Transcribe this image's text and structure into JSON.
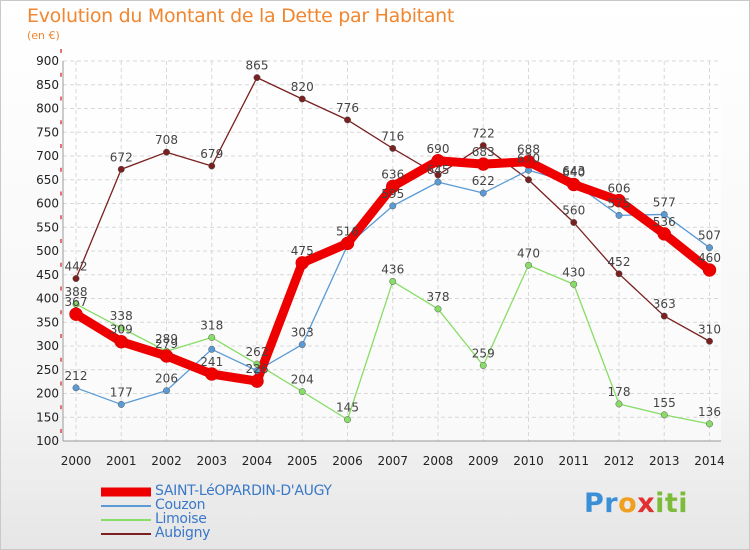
{
  "header": {
    "title": "Evolution du Montant de la Dette par Habitant",
    "unit": "(en €)"
  },
  "brand": {
    "letters": [
      "P",
      "r",
      "o",
      "x",
      "i",
      "t",
      "i"
    ],
    "colors": [
      "#3b8fd6",
      "#3b8fd6",
      "#f0a020",
      "#e03030",
      "#7dbb3a",
      "#7dbb3a",
      "#7dbb3a"
    ]
  },
  "chart_data": {
    "type": "line",
    "title": "Evolution du Montant de la Dette par Habitant",
    "xlabel": "",
    "ylabel": "",
    "x": [
      "2000",
      "2001",
      "2002",
      "2003",
      "2004",
      "2005",
      "2006",
      "2007",
      "2008",
      "2009",
      "2010",
      "2011",
      "2012",
      "2013",
      "2014"
    ],
    "ylim": [
      100,
      900
    ],
    "yticks": [
      100,
      150,
      200,
      250,
      300,
      350,
      400,
      450,
      500,
      550,
      600,
      650,
      700,
      750,
      800,
      850,
      900
    ],
    "grid": true,
    "legend_position": "bottom-left",
    "series": [
      {
        "name": "SAINT-LéOPARDIN-D'AUGY",
        "color": "#ee0000",
        "width": 9,
        "values": [
          367,
          309,
          279,
          241,
          226,
          475,
          516,
          636,
          690,
          683,
          688,
          640,
          606,
          536,
          460
        ],
        "labels": [
          "367",
          "309",
          "279",
          "241",
          "226",
          "475",
          "516",
          "636",
          "690",
          "683",
          "688",
          "640",
          "606",
          "536",
          "460"
        ]
      },
      {
        "name": "Couzon",
        "color": "#5b9bd5",
        "width": 1.3,
        "values": [
          212,
          177,
          206,
          293,
          248,
          303,
          512,
          595,
          645,
          622,
          670,
          643,
          575,
          577,
          507
        ],
        "labels": [
          "212",
          "177",
          "206",
          "",
          "",
          "303",
          "",
          "595",
          "645",
          "622",
          "670",
          "643",
          "575",
          "577",
          "507"
        ]
      },
      {
        "name": "Limoise",
        "color": "#88dd66",
        "width": 1.3,
        "values": [
          388,
          338,
          289,
          318,
          262,
          204,
          145,
          436,
          378,
          259,
          470,
          430,
          178,
          155,
          136
        ],
        "labels": [
          "388",
          "338",
          "289",
          "318",
          "262",
          "204",
          "145",
          "436",
          "378",
          "259",
          "470",
          "430",
          "178",
          "155",
          "136"
        ]
      },
      {
        "name": "Aubigny",
        "color": "#7a2020",
        "width": 1.3,
        "values": [
          442,
          672,
          708,
          679,
          865,
          820,
          776,
          716,
          660,
          722,
          650,
          560,
          452,
          363,
          310
        ],
        "labels": [
          "442",
          "672",
          "708",
          "679",
          "865",
          "820",
          "776",
          "716",
          "",
          "722",
          "",
          "560",
          "452",
          "363",
          "310"
        ]
      }
    ]
  }
}
